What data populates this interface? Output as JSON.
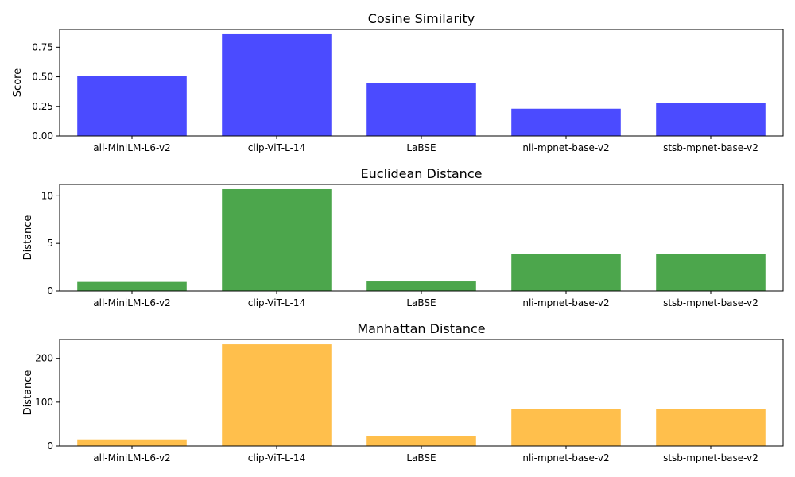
{
  "chart_data": [
    {
      "type": "bar",
      "title": "Cosine Similarity",
      "xlabel": "",
      "ylabel": "Score",
      "categories": [
        "all-MiniLM-L6-v2",
        "clip-ViT-L-14",
        "LaBSE",
        "nli-mpnet-base-v2",
        "stsb-mpnet-base-v2"
      ],
      "values": [
        0.51,
        0.86,
        0.45,
        0.23,
        0.28
      ],
      "ylim": [
        0,
        0.9
      ],
      "yticks": [
        0,
        0.25,
        0.5,
        0.75
      ],
      "ytick_labels": [
        "0.00",
        "0.25",
        "0.50",
        "0.75"
      ],
      "color": "#4b4bff",
      "grid": false
    },
    {
      "type": "bar",
      "title": "Euclidean Distance",
      "xlabel": "",
      "ylabel": "Distance",
      "categories": [
        "all-MiniLM-L6-v2",
        "clip-ViT-L-14",
        "LaBSE",
        "nli-mpnet-base-v2",
        "stsb-mpnet-base-v2"
      ],
      "values": [
        0.95,
        10.7,
        1.0,
        3.9,
        3.9
      ],
      "ylim": [
        0,
        11.2
      ],
      "yticks": [
        0,
        5,
        10
      ],
      "ytick_labels": [
        "0",
        "5",
        "10"
      ],
      "color": "#4ca64c",
      "grid": false
    },
    {
      "type": "bar",
      "title": "Manhattan Distance",
      "xlabel": "",
      "ylabel": "Distance",
      "categories": [
        "all-MiniLM-L6-v2",
        "clip-ViT-L-14",
        "LaBSE",
        "nli-mpnet-base-v2",
        "stsb-mpnet-base-v2"
      ],
      "values": [
        15,
        232,
        22,
        85,
        85
      ],
      "ylim": [
        0,
        243
      ],
      "yticks": [
        0,
        100,
        200
      ],
      "ytick_labels": [
        "0",
        "100",
        "200"
      ],
      "color": "#ffbf4c",
      "grid": false
    }
  ]
}
